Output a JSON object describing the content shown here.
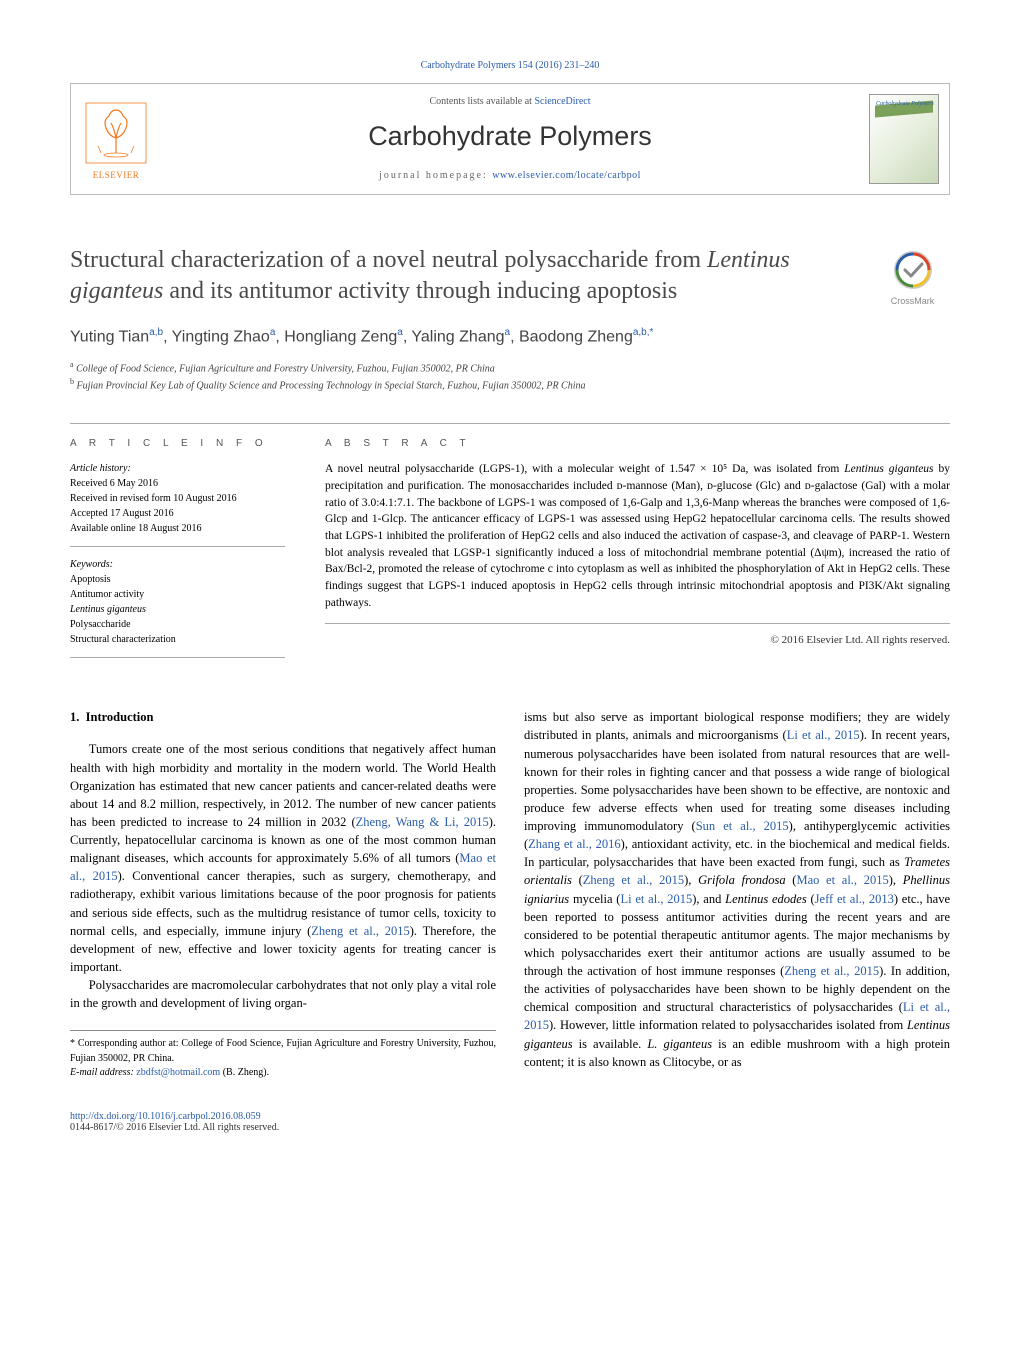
{
  "meta": {
    "citation": "Carbohydrate Polymers 154 (2016) 231–240",
    "citation_color": "#2a5caa"
  },
  "header": {
    "contents_prefix": "Contents lists available at ",
    "sciencedirect": "ScienceDirect",
    "journal_name": "Carbohydrate Polymers",
    "homepage_prefix": "journal homepage: ",
    "homepage_url": "www.elsevier.com/locate/carbpol",
    "publisher_logo_label": "ELSEVIER",
    "cover_title": "Carbohydrate Polymers"
  },
  "crossmark": {
    "label": "CrossMark"
  },
  "article": {
    "title_pre": "Structural characterization of a novel neutral polysaccharide from ",
    "title_em": "Lentinus giganteus",
    "title_post": " and its antitumor activity through inducing apoptosis",
    "authors_html": "Yuting Tian<sup>a,b</sup>, Yingting Zhao<sup>a</sup>, Hongliang Zeng<sup>a</sup>, Yaling Zhang<sup>a</sup>, Baodong Zheng<sup>a,b,*</sup>",
    "affiliations": [
      {
        "sup": "a",
        "text": "College of Food Science, Fujian Agriculture and Forestry University, Fuzhou, Fujian 350002, PR China"
      },
      {
        "sup": "b",
        "text": "Fujian Provincial Key Lab of Quality Science and Processing Technology in Special Starch, Fuzhou, Fujian 350002, PR China"
      }
    ]
  },
  "article_info": {
    "heading": "A R T I C L E   I N F O",
    "history_label": "Article history:",
    "history": [
      "Received 6 May 2016",
      "Received in revised form 10 August 2016",
      "Accepted 17 August 2016",
      "Available online 18 August 2016"
    ],
    "keywords_label": "Keywords:",
    "keywords": [
      "Apoptosis",
      "Antitumor activity",
      "Lentinus giganteus",
      "Polysaccharide",
      "Structural characterization"
    ]
  },
  "abstract": {
    "heading": "A B S T R A C T",
    "text": "A novel neutral polysaccharide (LGPS-1), with a molecular weight of 1.547 × 10⁵ Da, was isolated from Lentinus giganteus by precipitation and purification. The monosaccharides included ᴅ-mannose (Man), ᴅ-glucose (Glc) and ᴅ-galactose (Gal) with a molar ratio of 3.0:4.1:7.1. The backbone of LGPS-1 was composed of 1,6-Galp and 1,3,6-Manp whereas the branches were composed of 1,6-Glcp and 1-Glcp. The anticancer efficacy of LGPS-1 was assessed using HepG2 hepatocellular carcinoma cells. The results showed that LGPS-1 inhibited the proliferation of HepG2 cells and also induced the activation of caspase-3, and cleavage of PARP-1. Western blot analysis revealed that LGSP-1 significantly induced a loss of mitochondrial membrane potential (Δψm), increased the ratio of Bax/Bcl-2, promoted the release of cytochrome c into cytoplasm as well as inhibited the phosphorylation of Akt in HepG2 cells. These findings suggest that LGPS-1 induced apoptosis in HepG2 cells through intrinsic mitochondrial apoptosis and PI3K/Akt signaling pathways.",
    "copyright": "© 2016 Elsevier Ltd. All rights reserved."
  },
  "body": {
    "section_number": "1.",
    "section_title": "Introduction",
    "para1": "Tumors create one of the most serious conditions that negatively affect human health with high morbidity and mortality in the modern world. The World Health Organization has estimated that new cancer patients and cancer-related deaths were about 14 and 8.2 million, respectively, in 2012. The number of new cancer patients has been predicted to increase to 24 million in 2032 (",
    "cite1": "Zheng, Wang & Li, 2015",
    "para1b": "). Currently, hepatocellular carcinoma is known as one of the most common human malignant diseases, which accounts for approximately 5.6% of all tumors (",
    "cite2": "Mao et al., 2015",
    "para1c": "). Conventional cancer therapies, such as surgery, chemotherapy, and radiotherapy, exhibit various limitations because of the poor prognosis for patients and serious side effects, such as the multidrug resistance of tumor cells, toxicity to normal cells, and especially, immune injury (",
    "cite3": "Zheng et al., 2015",
    "para1d": "). Therefore, the development of new, effective and lower toxicity agents for treating cancer is important.",
    "para2": "Polysaccharides are macromolecular carbohydrates that not only play a vital role in the growth and development of living organ",
    "para2_cont": "isms but also serve as important biological response modifiers; they are widely distributed in plants, animals and microorganisms (",
    "cite4": "Li et al., 2015",
    "para2b": "). In recent years, numerous polysaccharides have been isolated from natural resources that are well-known for their roles in fighting cancer and that possess a wide range of biological properties. Some polysaccharides have been shown to be effective, are nontoxic and produce few adverse effects when used for treating some diseases including improving immunomodulatory (",
    "cite5": "Sun et al., 2015",
    "para2c": "), antihyperglycemic activities (",
    "cite6": "Zhang et al., 2016",
    "para2d": "), antioxidant activity, etc. in the biochemical and medical fields. In particular, polysaccharides that have been exacted from fungi, such as ",
    "em1": "Trametes orientalis",
    "para2e": " (",
    "cite7": "Zheng et al., 2015",
    "para2f": "), ",
    "em2": "Grifola frondosa",
    "para2g": " (",
    "cite8": "Mao et al., 2015",
    "para2h": "), ",
    "em3": "Phellinus igniarius",
    "para2i": " mycelia (",
    "cite9": "Li et al., 2015",
    "para2j": "), and ",
    "em4": "Lentinus edodes",
    "para2k": " (",
    "cite10": "Jeff et al., 2013",
    "para2l": ") etc., have been reported to possess antitumor activities during the recent years and are considered to be potential therapeutic antitumor agents. The major mechanisms by which polysaccharides exert their antitumor actions are usually assumed to be through the activation of host immune responses (",
    "cite11": "Zheng et al., 2015",
    "para2m": "). In addition, the activities of polysaccharides have been shown to be highly dependent on the chemical composition and structural characteristics of polysaccharides (",
    "cite12": "Li et al., 2015",
    "para2n": "). However, little information related to polysaccharides isolated from ",
    "em5": "Lentinus giganteus",
    "para2o": " is available. ",
    "em6": "L. giganteus",
    "para2p": " is an edible mushroom with a high protein content; it is also known as Clitocybe, or as"
  },
  "footnotes": {
    "corr": "* Corresponding author at: College of Food Science, Fujian Agriculture and Forestry University, Fuzhou, Fujian 350002, PR China.",
    "email_label": "E-mail address: ",
    "email": "zbdfst@hotmail.com",
    "email_person": " (B. Zheng)."
  },
  "footer": {
    "doi": "http://dx.doi.org/10.1016/j.carbpol.2016.08.059",
    "issn_copy": "0144-8617/© 2016 Elsevier Ltd. All rights reserved."
  },
  "colors": {
    "link": "#2a5caa",
    "text": "#000000",
    "heading_gray": "#4a4a4a",
    "rule": "#aaaaaa",
    "elsevier_orange": "#f47b20"
  }
}
